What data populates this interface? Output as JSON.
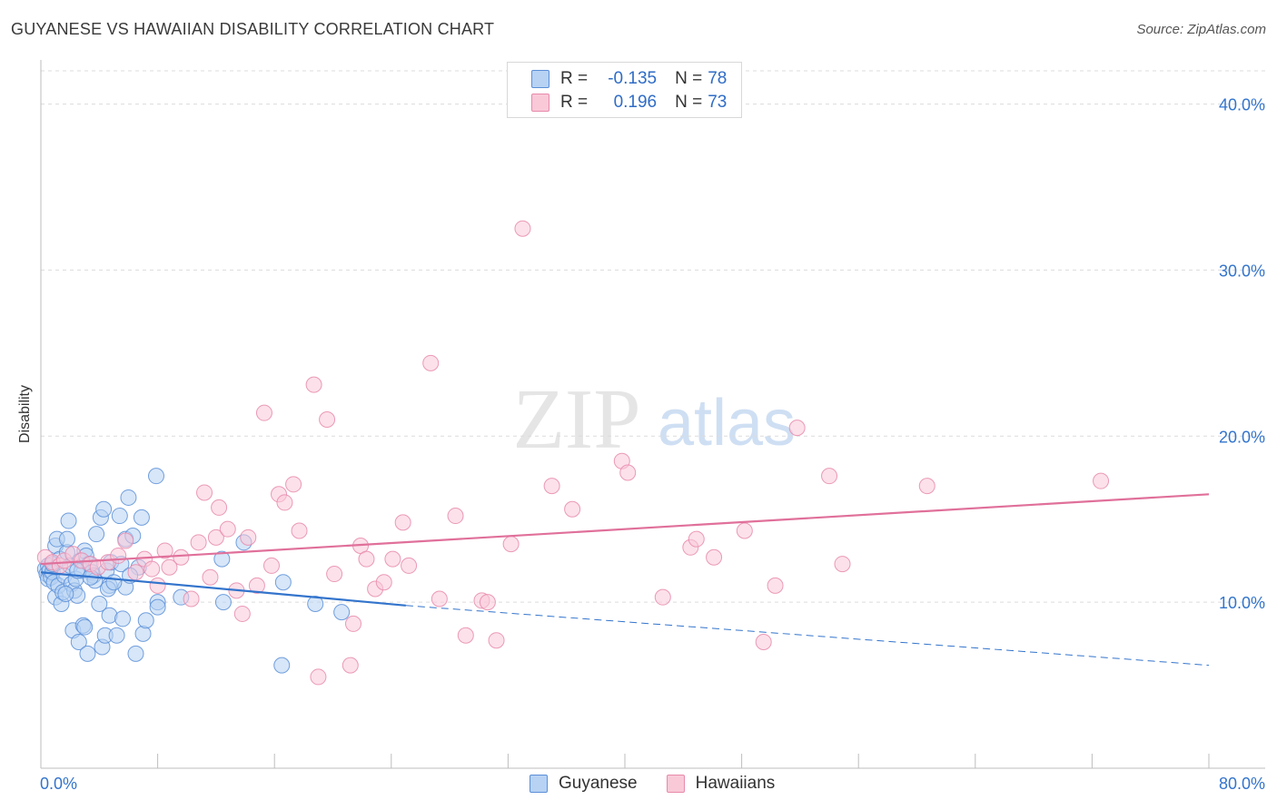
{
  "header": {
    "title": "GUYANESE VS HAWAIIAN DISABILITY CORRELATION CHART",
    "source": "Source: ZipAtlas.com"
  },
  "watermark": {
    "zip": "ZIP",
    "atlas": "atlas"
  },
  "legend": {
    "rows": [
      {
        "r_label": "R =",
        "r_value": "-0.135",
        "n_label": "N =",
        "n_value": "78",
        "fill": "#b7d2f3",
        "stroke": "#5b8fd8"
      },
      {
        "r_label": "R =",
        "r_value": "0.196",
        "n_label": "N =",
        "n_value": "73",
        "fill": "#f9c9d8",
        "stroke": "#e88aab"
      }
    ]
  },
  "colors": {
    "guyanese_fill": "#b7d2f3",
    "guyanese_stroke": "#5b8fd8",
    "guyanese_line": "#3374cc",
    "hawaiians_fill": "#f9c9d8",
    "hawaiians_stroke": "#e88aab",
    "hawaiians_line": "#e0709a",
    "tick_label": "#3374cc",
    "grid": "#dcdcdc"
  },
  "chart_data": {
    "type": "scatter",
    "title": "GUYANESE VS HAWAIIAN DISABILITY CORRELATION CHART",
    "xlabel": "",
    "ylabel": "Disability",
    "xlim": [
      0,
      80
    ],
    "ylim": [
      0,
      42
    ],
    "x_tick_labels": [
      "0.0%",
      "80.0%"
    ],
    "y_ticks": [
      10,
      20,
      30,
      40
    ],
    "y_tick_labels": [
      "10.0%",
      "20.0%",
      "30.0%",
      "40.0%"
    ],
    "grid": "horizontal dashed",
    "legend_position": "top-center",
    "series": [
      {
        "name": "Guyanese",
        "r": -0.135,
        "n": 78,
        "trend": {
          "x0": 0,
          "y0": 11.8,
          "x1": 25,
          "y1": 9.8,
          "dash_to_x": 80,
          "dash_to_y": 6.2
        },
        "points": [
          [
            0.3,
            12.0
          ],
          [
            0.4,
            11.7
          ],
          [
            0.5,
            11.4
          ],
          [
            0.5,
            12.2
          ],
          [
            0.6,
            11.9
          ],
          [
            0.7,
            11.5
          ],
          [
            0.8,
            11.8
          ],
          [
            0.9,
            11.2
          ],
          [
            1.0,
            13.4
          ],
          [
            1.0,
            10.3
          ],
          [
            1.1,
            13.8
          ],
          [
            1.2,
            11.0
          ],
          [
            1.3,
            12.6
          ],
          [
            1.4,
            9.9
          ],
          [
            1.5,
            10.6
          ],
          [
            1.6,
            11.6
          ],
          [
            1.8,
            13.0
          ],
          [
            1.8,
            13.8
          ],
          [
            1.9,
            14.9
          ],
          [
            2.0,
            12.2
          ],
          [
            2.1,
            11.1
          ],
          [
            2.2,
            8.3
          ],
          [
            2.3,
            10.7
          ],
          [
            2.4,
            11.4
          ],
          [
            2.5,
            10.4
          ],
          [
            2.6,
            7.6
          ],
          [
            2.7,
            12.5
          ],
          [
            2.8,
            11.9
          ],
          [
            2.9,
            8.6
          ],
          [
            3.0,
            8.5
          ],
          [
            3.0,
            13.1
          ],
          [
            3.1,
            12.8
          ],
          [
            3.2,
            6.9
          ],
          [
            3.3,
            12.3
          ],
          [
            3.5,
            11.8
          ],
          [
            3.6,
            11.6
          ],
          [
            3.7,
            11.3
          ],
          [
            3.8,
            14.1
          ],
          [
            4.0,
            9.9
          ],
          [
            4.1,
            15.1
          ],
          [
            4.2,
            7.3
          ],
          [
            4.3,
            15.6
          ],
          [
            4.4,
            8.0
          ],
          [
            4.5,
            11.9
          ],
          [
            4.7,
            11.0
          ],
          [
            4.7,
            9.2
          ],
          [
            4.8,
            12.4
          ],
          [
            5.2,
            8.0
          ],
          [
            5.4,
            15.2
          ],
          [
            5.5,
            12.3
          ],
          [
            5.6,
            9.0
          ],
          [
            5.8,
            10.9
          ],
          [
            5.8,
            13.8
          ],
          [
            6.0,
            16.3
          ],
          [
            6.3,
            14.0
          ],
          [
            6.5,
            6.9
          ],
          [
            6.7,
            12.1
          ],
          [
            6.9,
            15.1
          ],
          [
            7.0,
            8.1
          ],
          [
            7.2,
            8.9
          ],
          [
            7.9,
            17.6
          ],
          [
            8.0,
            10.0
          ],
          [
            8.0,
            9.7
          ],
          [
            9.6,
            10.3
          ],
          [
            12.4,
            12.6
          ],
          [
            12.5,
            10.0
          ],
          [
            13.9,
            13.6
          ],
          [
            16.5,
            6.2
          ],
          [
            16.6,
            11.2
          ],
          [
            18.8,
            9.9
          ],
          [
            20.6,
            9.4
          ],
          [
            0.8,
            12.3
          ],
          [
            1.7,
            10.5
          ],
          [
            2.5,
            11.9
          ],
          [
            3.4,
            11.5
          ],
          [
            4.6,
            10.8
          ],
          [
            5.0,
            11.2
          ],
          [
            6.1,
            11.6
          ]
        ]
      },
      {
        "name": "Hawaiians",
        "r": 0.196,
        "n": 73,
        "trend": {
          "x0": 0,
          "y0": 12.3,
          "x1": 80,
          "y1": 16.5
        },
        "points": [
          [
            0.3,
            12.7
          ],
          [
            0.8,
            12.4
          ],
          [
            1.3,
            12.2
          ],
          [
            1.6,
            12.5
          ],
          [
            2.2,
            12.9
          ],
          [
            2.8,
            12.5
          ],
          [
            3.4,
            12.3
          ],
          [
            3.9,
            12.1
          ],
          [
            4.6,
            12.4
          ],
          [
            5.3,
            12.8
          ],
          [
            5.8,
            13.7
          ],
          [
            6.5,
            11.8
          ],
          [
            7.1,
            12.6
          ],
          [
            7.6,
            12.0
          ],
          [
            8.0,
            11.0
          ],
          [
            8.5,
            13.1
          ],
          [
            8.8,
            12.1
          ],
          [
            9.6,
            12.7
          ],
          [
            10.3,
            10.2
          ],
          [
            10.8,
            13.6
          ],
          [
            11.2,
            16.6
          ],
          [
            12.0,
            13.9
          ],
          [
            12.2,
            15.7
          ],
          [
            12.8,
            14.4
          ],
          [
            13.4,
            10.7
          ],
          [
            13.8,
            9.3
          ],
          [
            14.2,
            13.9
          ],
          [
            14.8,
            11.0
          ],
          [
            15.3,
            21.4
          ],
          [
            15.8,
            12.2
          ],
          [
            16.3,
            16.5
          ],
          [
            16.7,
            16.0
          ],
          [
            17.3,
            17.1
          ],
          [
            17.7,
            14.3
          ],
          [
            18.7,
            23.1
          ],
          [
            19.0,
            5.5
          ],
          [
            19.6,
            21.0
          ],
          [
            20.1,
            11.7
          ],
          [
            21.2,
            6.2
          ],
          [
            21.4,
            8.7
          ],
          [
            21.9,
            13.4
          ],
          [
            22.3,
            12.6
          ],
          [
            22.9,
            10.8
          ],
          [
            23.5,
            11.2
          ],
          [
            24.1,
            12.6
          ],
          [
            24.8,
            14.8
          ],
          [
            25.2,
            12.2
          ],
          [
            26.7,
            24.4
          ],
          [
            27.3,
            10.2
          ],
          [
            28.4,
            15.2
          ],
          [
            29.1,
            8.0
          ],
          [
            30.2,
            10.1
          ],
          [
            30.6,
            10.0
          ],
          [
            31.2,
            7.7
          ],
          [
            32.2,
            13.5
          ],
          [
            33.0,
            32.5
          ],
          [
            35.0,
            17.0
          ],
          [
            36.4,
            15.6
          ],
          [
            39.8,
            18.5
          ],
          [
            40.2,
            17.8
          ],
          [
            42.6,
            10.3
          ],
          [
            44.5,
            13.3
          ],
          [
            44.9,
            13.8
          ],
          [
            46.1,
            12.7
          ],
          [
            48.2,
            14.3
          ],
          [
            49.5,
            7.6
          ],
          [
            50.3,
            11.0
          ],
          [
            51.8,
            20.5
          ],
          [
            54.0,
            17.6
          ],
          [
            54.9,
            12.3
          ],
          [
            60.7,
            17.0
          ],
          [
            72.6,
            17.3
          ],
          [
            11.6,
            11.5
          ]
        ]
      }
    ]
  }
}
